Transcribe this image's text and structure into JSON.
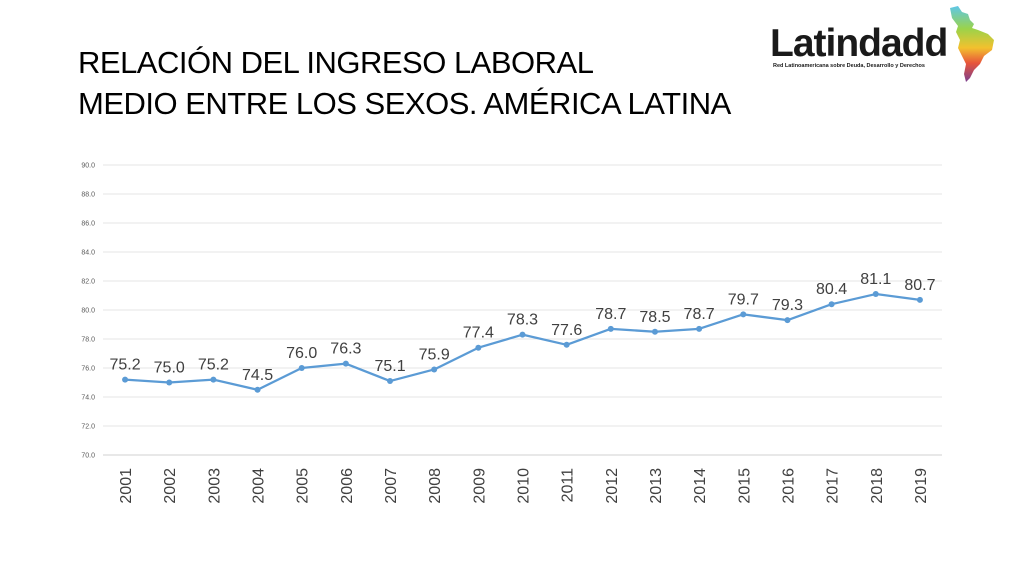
{
  "header": {
    "title_line1": "RELACIÓN DEL INGRESO LABORAL",
    "title_line2": "MEDIO ENTRE LOS SEXOS. AMÉRICA LATINA"
  },
  "logo": {
    "name": "Latindadd",
    "tagline": "Red Latinoamericana sobre Deuda, Desarrollo y Derechos"
  },
  "chart_data": {
    "type": "line",
    "title": "RELACIÓN DEL INGRESO LABORAL MEDIO ENTRE LOS SEXOS. AMÉRICA LATINA",
    "categories": [
      "2001",
      "2002",
      "2003",
      "2004",
      "2005",
      "2006",
      "2007",
      "2008",
      "2009",
      "2010",
      "2011",
      "2012",
      "2013",
      "2014",
      "2015",
      "2016",
      "2017",
      "2018",
      "2019"
    ],
    "values": [
      75.2,
      75.0,
      75.2,
      74.5,
      76.0,
      76.3,
      75.1,
      75.9,
      77.4,
      78.3,
      77.6,
      78.7,
      78.5,
      78.7,
      79.7,
      79.3,
      80.4,
      81.1,
      80.7
    ],
    "value_labels": [
      "75.2",
      "75.0",
      "75.2",
      "74.5",
      "76.0",
      "76.3",
      "75.1",
      "75.9",
      "77.4",
      "78.3",
      "77.6",
      "78.7",
      "78.5",
      "78.7",
      "79.7",
      "79.3",
      "80.4",
      "81.1",
      "80.7"
    ],
    "yticks": [
      "70.0",
      "72.0",
      "74.0",
      "76.0",
      "78.0",
      "80.0",
      "82.0",
      "84.0",
      "86.0",
      "88.0",
      "90.0"
    ],
    "ylim": [
      70,
      90
    ],
    "xlabel": "",
    "ylabel": "",
    "grid": true,
    "legend": "none",
    "color": "#5b9bd5"
  }
}
